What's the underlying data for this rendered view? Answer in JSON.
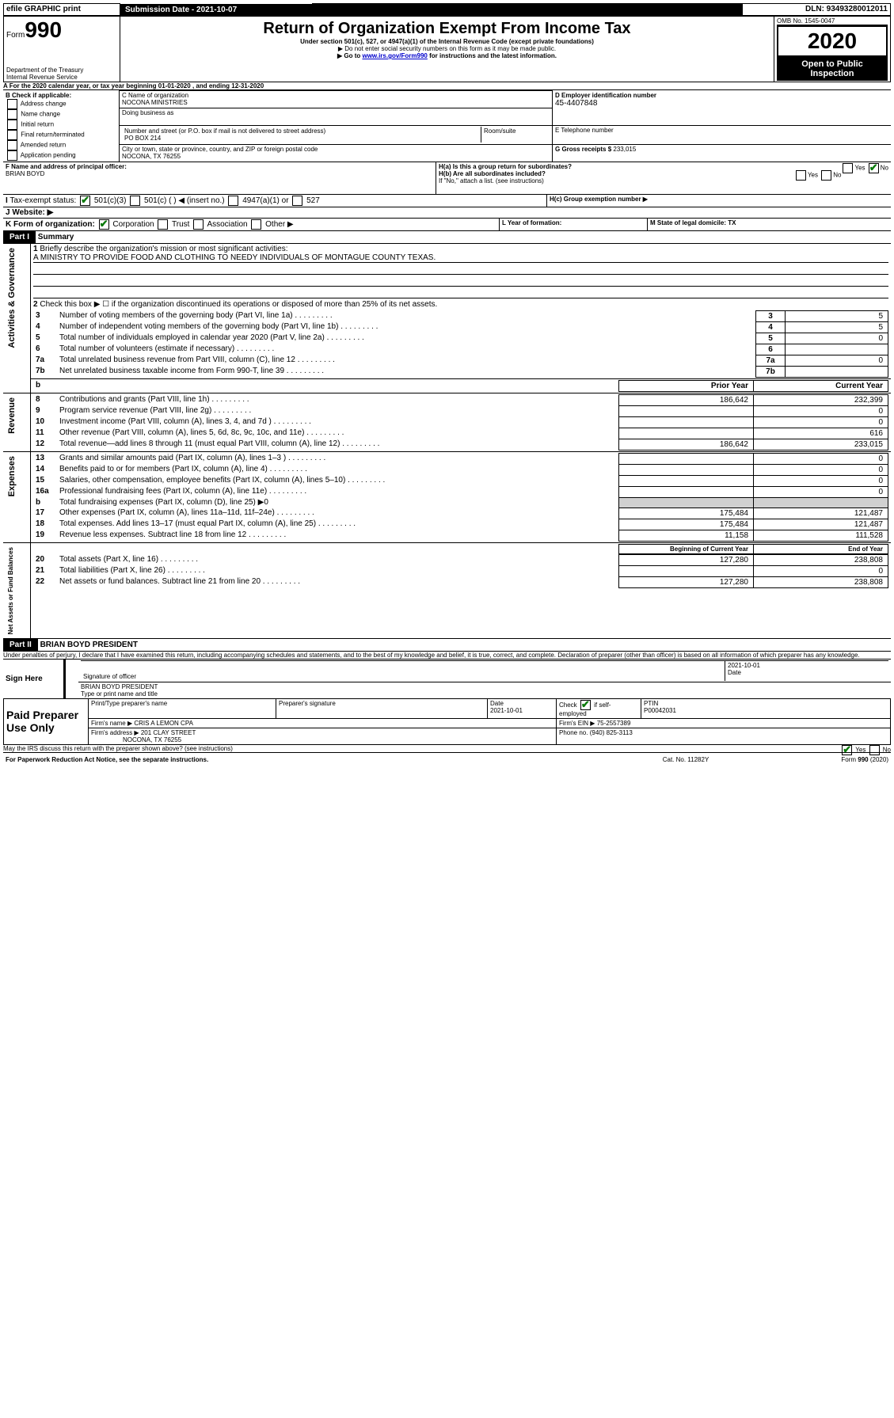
{
  "header_bar": {
    "efile": "efile GRAPHIC print",
    "sub_label": "Submission Date - 2021-10-07",
    "dln": "DLN: 93493280012011"
  },
  "form_header": {
    "form_word": "Form",
    "form_num": "990",
    "dept": "Department of the Treasury\nInternal Revenue Service",
    "title": "Return of Organization Exempt From Income Tax",
    "subtitle": "Under section 501(c), 527, or 4947(a)(1) of the Internal Revenue Code (except private foundations)",
    "note1": "▶ Do not enter social security numbers on this form as it may be made public.",
    "note2_pre": "▶ Go to ",
    "note2_link": "www.irs.gov/Form990",
    "note2_post": " for instructions and the latest information.",
    "omb": "OMB No. 1545-0047",
    "year": "2020",
    "open": "Open to Public Inspection"
  },
  "period": {
    "label_pre": "For the 2020 calendar year, or tax year beginning ",
    "begin": "01-01-2020",
    "mid": " , and ending ",
    "end": "12-31-2020"
  },
  "boxB": {
    "label": "B Check if applicable:",
    "items": [
      "Address change",
      "Name change",
      "Initial return",
      "Final return/terminated",
      "Amended return",
      "Application pending"
    ]
  },
  "boxC": {
    "name_label": "C Name of organization",
    "name": "NOCONA MINISTRIES",
    "dba_label": "Doing business as",
    "addr_label": "Number and street (or P.O. box if mail is not delivered to street address)",
    "room_label": "Room/suite",
    "addr": "PO BOX 214",
    "city_label": "City or town, state or province, country, and ZIP or foreign postal code",
    "city": "NOCONA, TX  76255"
  },
  "boxD": {
    "label": "D Employer identification number",
    "val": "45-4407848"
  },
  "boxE": {
    "label": "E Telephone number"
  },
  "boxG": {
    "label": "G Gross receipts $",
    "val": "233,015"
  },
  "boxF": {
    "label": "F  Name and address of principal officer:",
    "val": "BRIAN BOYD"
  },
  "boxH": {
    "a": "H(a)  Is this a group return for subordinates?",
    "b": "H(b)  Are all subordinates included?",
    "b_note": "If \"No,\" attach a list. (see instructions)",
    "c": "H(c)  Group exemption number ▶",
    "yes": "Yes",
    "no": "No"
  },
  "boxI": {
    "label": "Tax-exempt status:",
    "o1": "501(c)(3)",
    "o2": "501(c) (  ) ◀ (insert no.)",
    "o3": "4947(a)(1) or",
    "o4": "527"
  },
  "boxJ": {
    "label": "Website: ▶"
  },
  "boxK": {
    "label": "K Form of organization:",
    "o1": "Corporation",
    "o2": "Trust",
    "o3": "Association",
    "o4": "Other ▶"
  },
  "boxL": {
    "label": "L Year of formation:"
  },
  "boxM": {
    "label": "M State of legal domicile: TX"
  },
  "part1": {
    "title": "Part I",
    "name": "Summary",
    "l1": "Briefly describe the organization's mission or most significant activities:",
    "l1v": "A MINISTRY TO PROVIDE FOOD AND CLOTHING TO NEEDY INDIVIDUALS OF MONTAGUE COUNTY TEXAS.",
    "l2": "Check this box ▶ ☐  if the organization discontinued its operations or disposed of more than 25% of its net assets.",
    "rows_gov": [
      {
        "n": "3",
        "t": "Number of voting members of the governing body (Part VI, line 1a)",
        "v": "5"
      },
      {
        "n": "4",
        "t": "Number of independent voting members of the governing body (Part VI, line 1b)",
        "v": "5"
      },
      {
        "n": "5",
        "t": "Total number of individuals employed in calendar year 2020 (Part V, line 2a)",
        "v": "0"
      },
      {
        "n": "6",
        "t": "Total number of volunteers (estimate if necessary)",
        "v": ""
      },
      {
        "n": "7a",
        "t": "Total unrelated business revenue from Part VIII, column (C), line 12",
        "v": "0"
      },
      {
        "n": "7b",
        "t": "Net unrelated business taxable income from Form 990-T, line 39",
        "v": ""
      }
    ],
    "py": "Prior Year",
    "cy": "Current Year",
    "rows_rev": [
      {
        "n": "8",
        "t": "Contributions and grants (Part VIII, line 1h)",
        "p": "186,642",
        "c": "232,399"
      },
      {
        "n": "9",
        "t": "Program service revenue (Part VIII, line 2g)",
        "p": "",
        "c": "0"
      },
      {
        "n": "10",
        "t": "Investment income (Part VIII, column (A), lines 3, 4, and 7d )",
        "p": "",
        "c": "0"
      },
      {
        "n": "11",
        "t": "Other revenue (Part VIII, column (A), lines 5, 6d, 8c, 9c, 10c, and 11e)",
        "p": "",
        "c": "616"
      },
      {
        "n": "12",
        "t": "Total revenue—add lines 8 through 11 (must equal Part VIII, column (A), line 12)",
        "p": "186,642",
        "c": "233,015"
      }
    ],
    "rows_exp": [
      {
        "n": "13",
        "t": "Grants and similar amounts paid (Part IX, column (A), lines 1–3 )",
        "p": "",
        "c": "0"
      },
      {
        "n": "14",
        "t": "Benefits paid to or for members (Part IX, column (A), line 4)",
        "p": "",
        "c": "0"
      },
      {
        "n": "15",
        "t": "Salaries, other compensation, employee benefits (Part IX, column (A), lines 5–10)",
        "p": "",
        "c": "0"
      },
      {
        "n": "16a",
        "t": "Professional fundraising fees (Part IX, column (A), line 11e)",
        "p": "",
        "c": "0"
      },
      {
        "n": "b",
        "t": "Total fundraising expenses (Part IX, column (D), line 25) ▶0",
        "p": "",
        "c": "",
        "gray": true
      },
      {
        "n": "17",
        "t": "Other expenses (Part IX, column (A), lines 11a–11d, 11f–24e)",
        "p": "175,484",
        "c": "121,487"
      },
      {
        "n": "18",
        "t": "Total expenses. Add lines 13–17 (must equal Part IX, column (A), line 25)",
        "p": "175,484",
        "c": "121,487"
      },
      {
        "n": "19",
        "t": "Revenue less expenses. Subtract line 18 from line 12",
        "p": "11,158",
        "c": "111,528"
      }
    ],
    "boy": "Beginning of Current Year",
    "eoy": "End of Year",
    "rows_bal": [
      {
        "n": "20",
        "t": "Total assets (Part X, line 16)",
        "p": "127,280",
        "c": "238,808"
      },
      {
        "n": "21",
        "t": "Total liabilities (Part X, line 26)",
        "p": "",
        "c": "0"
      },
      {
        "n": "22",
        "t": "Net assets or fund balances. Subtract line 21 from line 20",
        "p": "127,280",
        "c": "238,808"
      }
    ],
    "side_gov": "Activities & Governance",
    "side_rev": "Revenue",
    "side_exp": "Expenses",
    "side_bal": "Net Assets or Fund Balances"
  },
  "part2": {
    "title": "Part II",
    "name": "BRIAN BOYD PRESIDENT",
    "decl": "Under penalties of perjury, I declare that I have examined this return, including accompanying schedules and statements, and to the best of my knowledge and belief, it is true, correct, and complete. Declaration of preparer (other than officer) is based on all information of which preparer has any knowledge.",
    "sign_here": "Sign Here",
    "sig_label": "Signature of officer",
    "date_label": "Date",
    "date": "2021-10-01",
    "name_label": "Type or print name and title",
    "paid": "Paid Preparer Use Only",
    "pp_name_label": "Print/Type preparer's name",
    "pp_sig_label": "Preparer's signature",
    "pp_date": "2021-10-01",
    "pp_check": "Check ☑ if self-employed",
    "ptin_label": "PTIN",
    "ptin": "P00042031",
    "firm_name_label": "Firm's name   ▶",
    "firm_name": "CRIS A LEMON CPA",
    "firm_ein_label": "Firm's EIN ▶",
    "firm_ein": "75-2557389",
    "firm_addr_label": "Firm's address ▶",
    "firm_addr": "201 CLAY STREET",
    "firm_addr2": "NOCONA, TX  76255",
    "phone_label": "Phone no.",
    "phone": "(940) 825-3113",
    "discuss": "May the IRS discuss this return with the preparer shown above? (see instructions)"
  },
  "footer": {
    "pra": "For Paperwork Reduction Act Notice, see the separate instructions.",
    "cat": "Cat. No. 11282Y",
    "form": "Form 990 (2020)"
  }
}
